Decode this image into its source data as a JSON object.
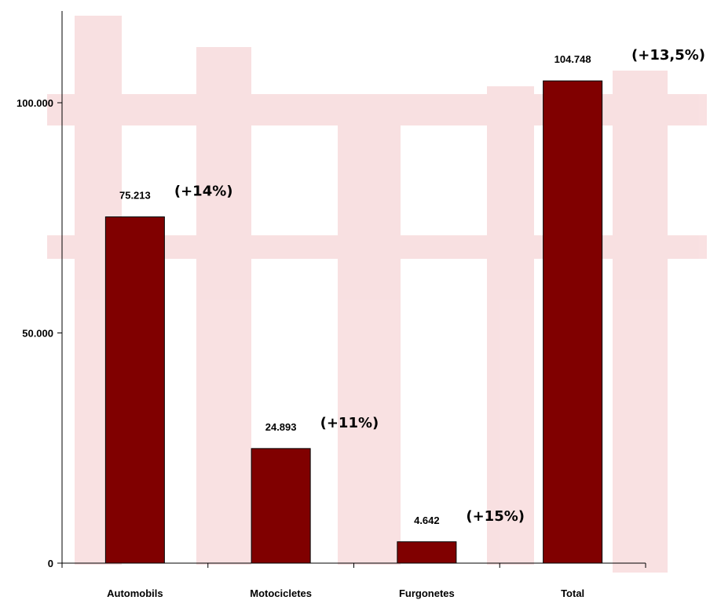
{
  "chart_data": {
    "type": "bar",
    "title": "",
    "xlabel": "",
    "ylabel": "",
    "categories": [
      "Automobils",
      "Motocicletes",
      "Furgonetes",
      "Total"
    ],
    "values": [
      75213,
      24893,
      4642,
      104748
    ],
    "value_labels": [
      "75.213",
      "24.893",
      "4.642",
      "104.748"
    ],
    "change_labels": [
      "(+14%)",
      "(+11%)",
      "(+15%)",
      "(+13,5%)"
    ],
    "yticks": [
      0,
      50000,
      100000
    ],
    "ytick_labels": [
      "0",
      "50.000",
      "100.000"
    ],
    "ylim": [
      0,
      120000
    ],
    "grid": false,
    "bar_color": "#800000",
    "watermark_color": "#d9434a"
  }
}
